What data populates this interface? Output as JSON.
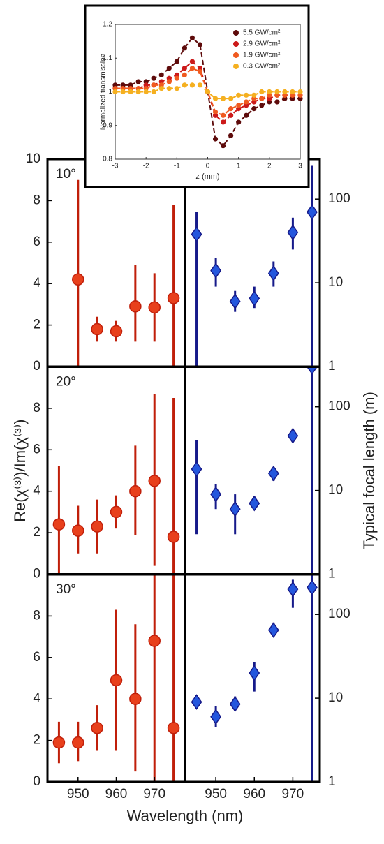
{
  "chart_data": [
    {
      "type": "zscan",
      "xlabel": "z (mm)",
      "ylabel": "Normalized transmission",
      "legend": "upper right",
      "x": [
        -3,
        -2.75,
        -2.5,
        -2.25,
        -2,
        -1.75,
        -1.5,
        -1.25,
        -1,
        -0.75,
        -0.5,
        -0.25,
        0,
        0.25,
        0.5,
        0.75,
        1,
        1.25,
        1.5,
        1.75,
        2,
        2.25,
        2.5,
        2.75,
        3
      ],
      "xlim": [
        -3,
        3
      ],
      "xticks": [
        -3,
        -2,
        -1,
        0,
        1,
        2,
        3
      ],
      "ylim": [
        0.8,
        1.2
      ],
      "yticks": [
        0.8,
        0.9,
        1,
        1.1,
        1.2
      ],
      "series": [
        {
          "name": "5.5 GW/cm²",
          "color": "#5e0b0b",
          "values": [
            1.02,
            1.02,
            1.02,
            1.03,
            1.03,
            1.04,
            1.05,
            1.07,
            1.09,
            1.13,
            1.16,
            1.14,
            1.0,
            0.86,
            0.84,
            0.87,
            0.91,
            0.93,
            0.95,
            0.96,
            0.97,
            0.97,
            0.98,
            0.98,
            0.98
          ]
        },
        {
          "name": "2.9 GW/cm²",
          "color": "#cc1a1a",
          "values": [
            1.01,
            1.01,
            1.01,
            1.01,
            1.02,
            1.02,
            1.03,
            1.04,
            1.05,
            1.07,
            1.09,
            1.07,
            1.0,
            0.93,
            0.91,
            0.93,
            0.95,
            0.96,
            0.97,
            0.98,
            0.98,
            0.99,
            0.99,
            0.99,
            0.99
          ]
        },
        {
          "name": "1.9 GW/cm²",
          "color": "#f05a20",
          "values": [
            1.01,
            1.01,
            1.01,
            1.01,
            1.01,
            1.02,
            1.02,
            1.03,
            1.04,
            1.05,
            1.07,
            1.06,
            1.0,
            0.94,
            0.93,
            0.95,
            0.96,
            0.97,
            0.98,
            0.98,
            0.99,
            0.99,
            0.99,
            0.99,
            0.99
          ]
        },
        {
          "name": "0.3 GW/cm²",
          "color": "#f5b020",
          "values": [
            1.0,
            1.0,
            1.0,
            1.0,
            1.0,
            1.0,
            1.01,
            1.01,
            1.01,
            1.02,
            1.02,
            1.02,
            1.0,
            0.98,
            0.98,
            0.98,
            0.99,
            0.99,
            0.99,
            1.0,
            1.0,
            1.0,
            1.0,
            1.0,
            1.0
          ]
        }
      ]
    },
    {
      "type": "errorbar",
      "label": "10°",
      "yaxis": "left",
      "marker": "circle",
      "color": "#e8401c",
      "bar_color": "#c01f0a",
      "x": [
        950,
        955,
        960,
        965,
        970,
        975
      ],
      "values": [
        4.2,
        1.8,
        1.7,
        2.9,
        2.85,
        3.3
      ],
      "lower": [
        0,
        1.2,
        1.2,
        1.2,
        1.2,
        0
      ],
      "upper": [
        9,
        2.4,
        2.2,
        4.9,
        4.5,
        7.8
      ],
      "xlim": [
        942,
        978
      ],
      "ylim": [
        0,
        10
      ],
      "yticks": [
        0,
        2,
        4,
        6,
        8,
        10
      ]
    },
    {
      "type": "errorbar",
      "yaxis": "right",
      "log": true,
      "marker": "diamond",
      "color": "#2557dd",
      "bar_color": "#161a8a",
      "x": [
        945,
        950,
        955,
        960,
        965,
        970,
        975
      ],
      "values": [
        38,
        14,
        6,
        6.5,
        13,
        40,
        70
      ],
      "lower": [
        1,
        9,
        4.5,
        5,
        9,
        25,
        1
      ],
      "upper": [
        70,
        20,
        8,
        9,
        18,
        60,
        250
      ],
      "xlim": [
        942,
        977
      ],
      "ylim": [
        1,
        300
      ],
      "yticks": [
        1,
        10,
        100
      ]
    },
    {
      "type": "errorbar",
      "label": "20°",
      "yaxis": "left",
      "marker": "circle",
      "color": "#e8401c",
      "bar_color": "#c01f0a",
      "ylabel": "Re(χ⁽³⁾)/Im(χ⁽³⁾)",
      "x": [
        945,
        950,
        955,
        960,
        965,
        970,
        975
      ],
      "values": [
        2.4,
        2.1,
        2.3,
        3.0,
        4.0,
        4.5,
        1.8
      ],
      "lower": [
        0,
        1,
        1,
        2.2,
        1.9,
        0.4,
        0
      ],
      "upper": [
        5.2,
        3.3,
        3.6,
        3.8,
        6.2,
        8.7,
        8.5
      ],
      "xlim": [
        942,
        978
      ],
      "ylim": [
        0,
        10
      ],
      "yticks": [
        0,
        2,
        4,
        6,
        8
      ]
    },
    {
      "type": "errorbar",
      "yaxis": "right",
      "log": true,
      "marker": "diamond",
      "color": "#2557dd",
      "bar_color": "#161a8a",
      "ylabel": "Typical focal length (m)",
      "x": [
        945,
        950,
        955,
        960,
        965,
        970,
        975
      ],
      "values": [
        18,
        9,
        6,
        7,
        16,
        45,
        300
      ],
      "lower": [
        3,
        6,
        3,
        6,
        13,
        38,
        1
      ],
      "upper": [
        40,
        12,
        9,
        8.5,
        19,
        55,
        300
      ],
      "xlim": [
        942,
        977
      ],
      "ylim": [
        1,
        300
      ],
      "yticks": [
        1,
        10,
        100
      ]
    },
    {
      "type": "errorbar",
      "label": "30°",
      "yaxis": "left",
      "marker": "circle",
      "color": "#e8401c",
      "bar_color": "#c01f0a",
      "xlabel": "Wavelength (nm)",
      "x": [
        945,
        950,
        955,
        960,
        965,
        970,
        975
      ],
      "values": [
        1.9,
        1.9,
        2.6,
        4.9,
        4.0,
        6.8,
        2.6
      ],
      "lower": [
        0.9,
        1,
        1.5,
        1.5,
        0.5,
        0,
        0
      ],
      "upper": [
        2.9,
        2.9,
        3.7,
        8.3,
        7.6,
        10,
        10
      ],
      "xlim": [
        942,
        978
      ],
      "xticks": [
        950,
        960,
        970
      ],
      "ylim": [
        0,
        10
      ],
      "yticks": [
        0,
        2,
        4,
        6,
        8
      ]
    },
    {
      "type": "errorbar",
      "yaxis": "right",
      "log": true,
      "marker": "diamond",
      "color": "#2557dd",
      "bar_color": "#161a8a",
      "x": [
        945,
        950,
        955,
        960,
        965,
        970,
        975
      ],
      "values": [
        9,
        6,
        8.5,
        20,
        65,
        200,
        210
      ],
      "lower": [
        7.5,
        4.5,
        7,
        12,
        55,
        120,
        1
      ],
      "upper": [
        11,
        8,
        10.5,
        27,
        80,
        260,
        300
      ],
      "xlim": [
        942,
        977
      ],
      "xticks": [
        950,
        960,
        970
      ],
      "ylim": [
        1,
        300
      ],
      "yticks": [
        1,
        10,
        100
      ]
    }
  ]
}
